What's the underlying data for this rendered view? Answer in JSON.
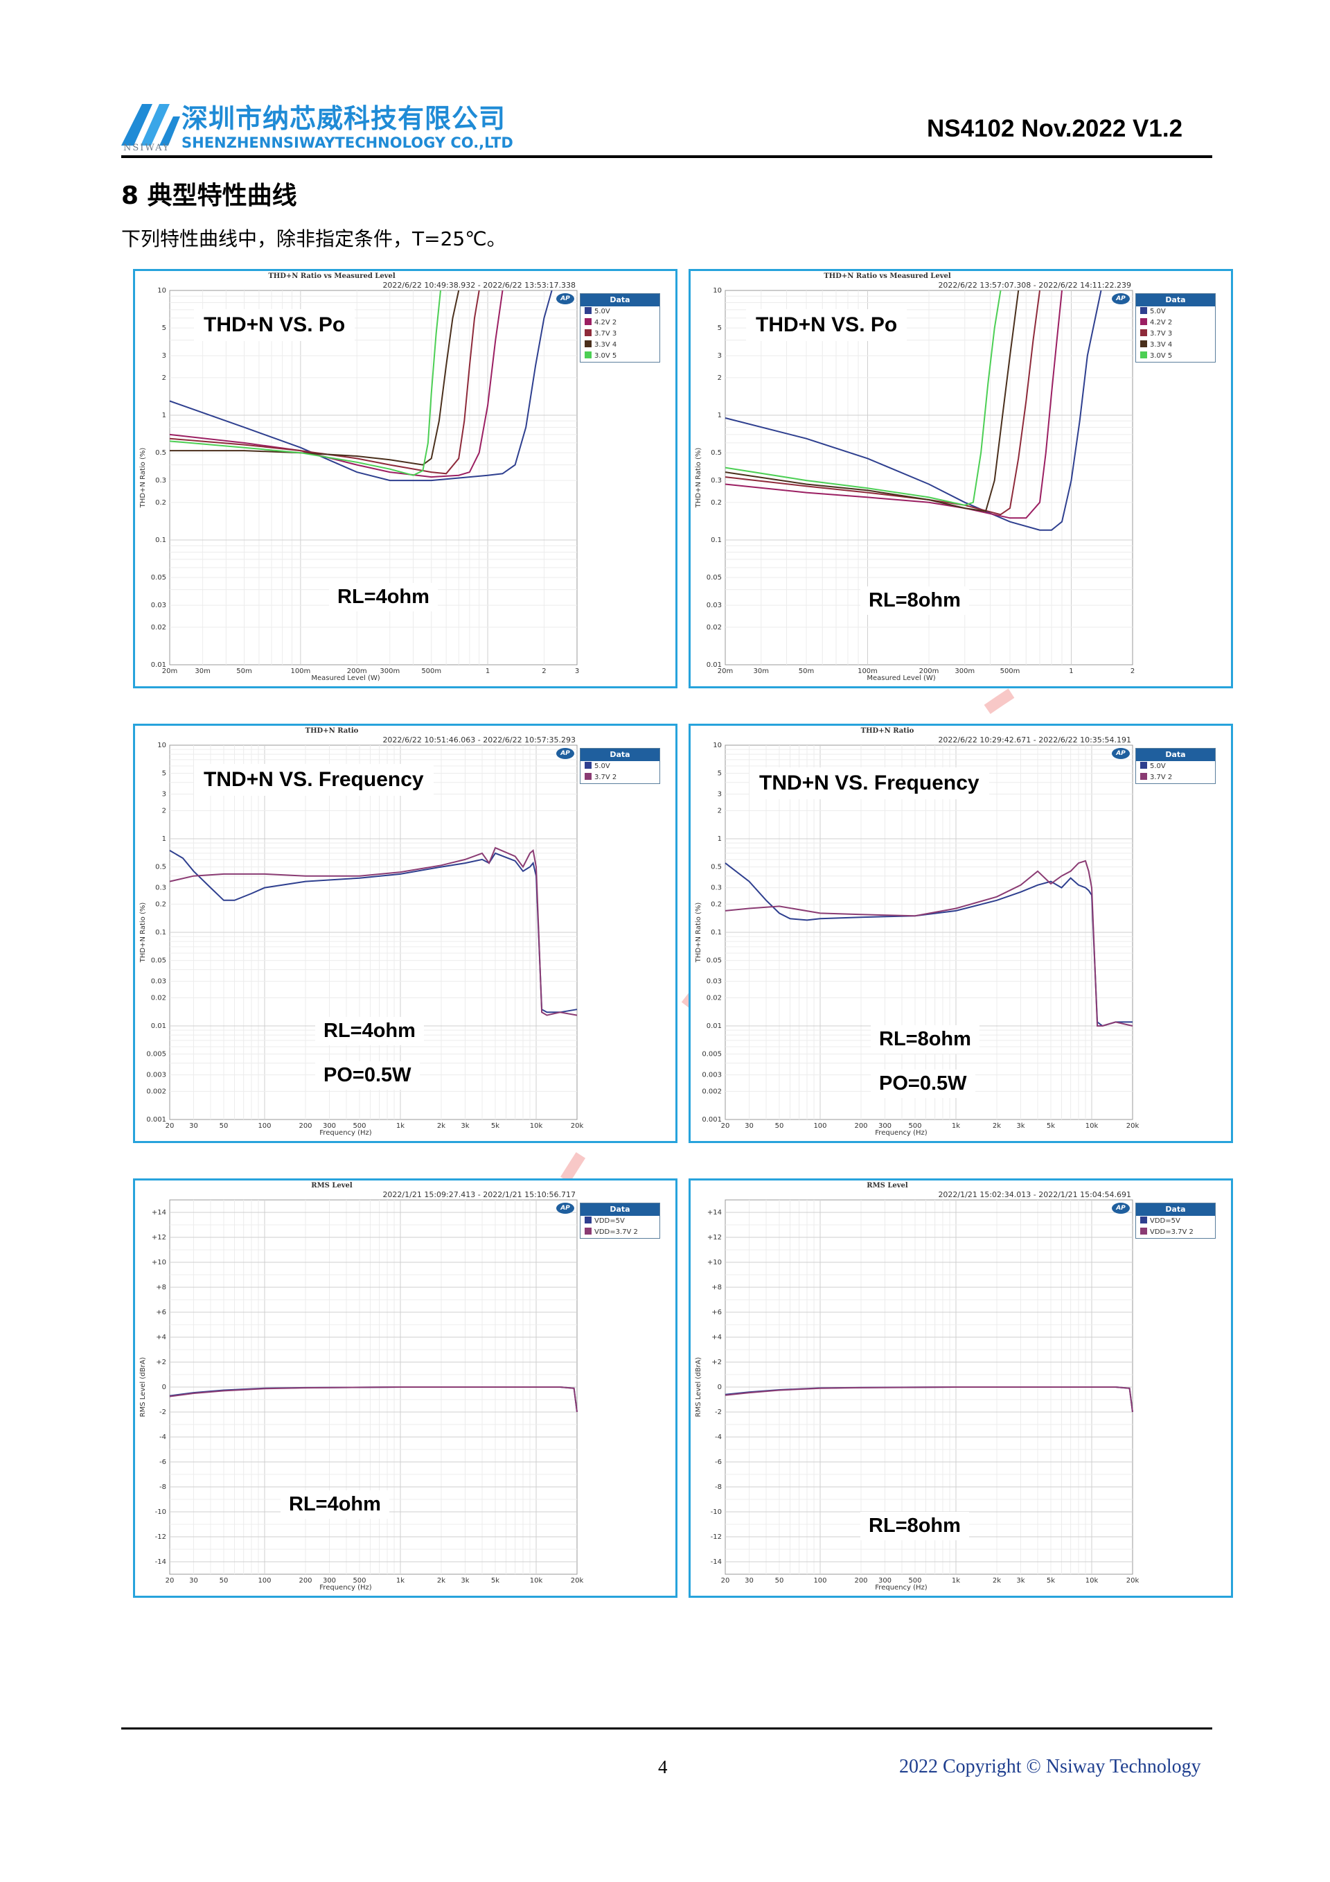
{
  "header": {
    "company_cn": "深圳市纳芯威科技有限公司",
    "company_en": "SHENZHENNSIWAYTECHNOLOGY CO.,LTD",
    "logo_text": "NSIWAY",
    "doc_id": "NS4102 Nov.2022 V1.2"
  },
  "section": {
    "title": "8 典型特性曲线",
    "intro": "下列特性曲线中，除非指定条件，T=25℃。"
  },
  "colors": {
    "panel_border": "#27a3dc",
    "company_blue": "#1f8bd6",
    "legend_header": "#1f5f9e",
    "series_5v": "#2e3f8f",
    "series_42v": "#9b1f62",
    "series_37v": "#8e2a3a",
    "series_33v": "#4a2f1c",
    "series_30v": "#4ccf54",
    "series_37v_pink": "#8a3b73",
    "watermark": "#e53935"
  },
  "charts": [
    {
      "id": "thd_po_4ohm",
      "title": "THD+N Ratio vs Measured Level",
      "timestamp": "2022/6/22 10:49:38.932 - 2022/6/22 13:53:17.338",
      "label": "THD+N VS. Po",
      "condition": "RL=4ohm",
      "condition2": "",
      "legend_title": "Data",
      "legend": [
        {
          "text": "5.0V",
          "color": "#2e3f8f"
        },
        {
          "text": "4.2V 2",
          "color": "#9b1f62"
        },
        {
          "text": "3.7V 3",
          "color": "#8e2a3a"
        },
        {
          "text": "3.3V 4",
          "color": "#4a2f1c"
        },
        {
          "text": "3.0V 5",
          "color": "#4ccf54"
        }
      ],
      "xlabel": "Measured Level (W)",
      "ylabel": "THD+N Ratio (%)",
      "xticks": [
        "20m",
        "30m",
        "50m",
        "100m",
        "200m",
        "300m",
        "500m",
        "1",
        "2",
        "3"
      ],
      "yticks": [
        "10",
        "5",
        "3",
        "2",
        "1",
        "0.5",
        "0.3",
        "0.2",
        "0.1",
        "0.05",
        "0.03",
        "0.02",
        "0.01"
      ]
    },
    {
      "id": "thd_po_8ohm",
      "title": "THD+N Ratio vs Measured Level",
      "timestamp": "2022/6/22 13:57:07.308 - 2022/6/22 14:11:22.239",
      "label": "THD+N VS. Po",
      "condition": "RL=8ohm",
      "condition2": "",
      "legend_title": "Data",
      "legend": [
        {
          "text": "5.0V",
          "color": "#2e3f8f"
        },
        {
          "text": "4.2V 2",
          "color": "#9b1f62"
        },
        {
          "text": "3.7V 3",
          "color": "#8e2a3a"
        },
        {
          "text": "3.3V 4",
          "color": "#4a2f1c"
        },
        {
          "text": "3.0V 5",
          "color": "#4ccf54"
        }
      ],
      "xlabel": "Measured Level (W)",
      "ylabel": "THD+N Ratio (%)",
      "xticks": [
        "20m",
        "30m",
        "50m",
        "100m",
        "200m",
        "300m",
        "500m",
        "1",
        "2"
      ],
      "yticks": [
        "10",
        "5",
        "3",
        "2",
        "1",
        "0.5",
        "0.3",
        "0.2",
        "0.1",
        "0.05",
        "0.03",
        "0.02",
        "0.01"
      ]
    },
    {
      "id": "thd_freq_4ohm",
      "title": "THD+N Ratio",
      "timestamp": "2022/6/22 10:51:46.063 - 2022/6/22 10:57:35.293",
      "label": "TND+N VS. Frequency",
      "condition": "RL=4ohm",
      "condition2": "PO=0.5W",
      "legend_title": "Data",
      "legend": [
        {
          "text": "5.0V",
          "color": "#2e3f8f"
        },
        {
          "text": "3.7V 2",
          "color": "#8a3b73"
        }
      ],
      "xlabel": "Frequency (Hz)",
      "ylabel": "THD+N Ratio (%)",
      "xticks": [
        "20",
        "30",
        "50",
        "100",
        "200",
        "300",
        "500",
        "1k",
        "2k",
        "3k",
        "5k",
        "10k",
        "20k"
      ],
      "yticks": [
        "10",
        "5",
        "3",
        "2",
        "1",
        "0.5",
        "0.3",
        "0.2",
        "0.1",
        "0.05",
        "0.03",
        "0.02",
        "0.01",
        "0.005",
        "0.003",
        "0.002",
        "0.001"
      ]
    },
    {
      "id": "thd_freq_8ohm",
      "title": "THD+N Ratio",
      "timestamp": "2022/6/22 10:29:42.671 - 2022/6/22 10:35:54.191",
      "label": "TND+N VS. Frequency",
      "condition": "RL=8ohm",
      "condition2": "PO=0.5W",
      "legend_title": "Data",
      "legend": [
        {
          "text": "5.0V",
          "color": "#2e3f8f"
        },
        {
          "text": "3.7V 2",
          "color": "#8a3b73"
        }
      ],
      "xlabel": "Frequency (Hz)",
      "ylabel": "THD+N Ratio (%)",
      "xticks": [
        "20",
        "30",
        "50",
        "100",
        "200",
        "300",
        "500",
        "1k",
        "2k",
        "3k",
        "5k",
        "10k",
        "20k"
      ],
      "yticks": [
        "10",
        "5",
        "3",
        "2",
        "1",
        "0.5",
        "0.3",
        "0.2",
        "0.1",
        "0.05",
        "0.03",
        "0.02",
        "0.01",
        "0.005",
        "0.003",
        "0.002",
        "0.001"
      ]
    },
    {
      "id": "rms_4ohm",
      "title": "RMS Level",
      "timestamp": "2022/1/21 15:09:27.413 - 2022/1/21 15:10:56.717",
      "label": "",
      "condition": "RL=4ohm",
      "condition2": "",
      "legend_title": "Data",
      "legend": [
        {
          "text": "VDD=5V",
          "color": "#2e3f8f"
        },
        {
          "text": "VDD=3.7V 2",
          "color": "#8a3b73"
        }
      ],
      "xlabel": "Frequency (Hz)",
      "ylabel": "RMS Level (dBrA)",
      "xticks": [
        "20",
        "30",
        "50",
        "100",
        "200",
        "300",
        "500",
        "1k",
        "2k",
        "3k",
        "5k",
        "10k",
        "20k"
      ],
      "yticks": [
        "+14",
        "+12",
        "+10",
        "+8",
        "+6",
        "+4",
        "+2",
        "0",
        "-2",
        "-4",
        "-6",
        "-8",
        "-10",
        "-12",
        "-14"
      ]
    },
    {
      "id": "rms_8ohm",
      "title": "RMS Level",
      "timestamp": "2022/1/21 15:02:34.013 - 2022/1/21 15:04:54.691",
      "label": "",
      "condition": "RL=8ohm",
      "condition2": "",
      "legend_title": "Data",
      "legend": [
        {
          "text": "VDD=5V",
          "color": "#2e3f8f"
        },
        {
          "text": "VDD=3.7V 2",
          "color": "#8a3b73"
        }
      ],
      "xlabel": "Frequency (Hz)",
      "ylabel": "RMS Level (dBrA)",
      "xticks": [
        "20",
        "30",
        "50",
        "100",
        "200",
        "300",
        "500",
        "1k",
        "2k",
        "3k",
        "5k",
        "10k",
        "20k"
      ],
      "yticks": [
        "+14",
        "+12",
        "+10",
        "+8",
        "+6",
        "+4",
        "+2",
        "0",
        "-2",
        "-4",
        "-6",
        "-8",
        "-10",
        "-12",
        "-14"
      ]
    }
  ],
  "chart_data": [
    {
      "type": "line",
      "title": "THD+N Ratio vs Measured Level",
      "xlabel": "Measured Level (W)",
      "ylabel": "THD+N Ratio (%)",
      "xscale": "log",
      "yscale": "log",
      "xlim": [
        0.02,
        3
      ],
      "ylim": [
        0.01,
        10
      ],
      "series": [
        {
          "name": "5.0V",
          "x": [
            0.02,
            0.05,
            0.1,
            0.2,
            0.3,
            0.5,
            0.8,
            1.0,
            1.2,
            1.4,
            1.6,
            1.8,
            2.0,
            2.2
          ],
          "y": [
            1.3,
            0.8,
            0.55,
            0.35,
            0.3,
            0.3,
            0.32,
            0.33,
            0.34,
            0.4,
            0.8,
            2.5,
            6,
            10
          ]
        },
        {
          "name": "4.2V 2",
          "x": [
            0.02,
            0.05,
            0.1,
            0.2,
            0.3,
            0.5,
            0.7,
            0.8,
            0.9,
            1.0,
            1.1,
            1.2
          ],
          "y": [
            0.7,
            0.6,
            0.52,
            0.4,
            0.35,
            0.32,
            0.33,
            0.35,
            0.5,
            1.2,
            4,
            10
          ]
        },
        {
          "name": "3.7V 3",
          "x": [
            0.02,
            0.05,
            0.1,
            0.2,
            0.3,
            0.5,
            0.6,
            0.7,
            0.75,
            0.8,
            0.85,
            0.9
          ],
          "y": [
            0.65,
            0.58,
            0.52,
            0.45,
            0.4,
            0.35,
            0.34,
            0.45,
            0.9,
            2.5,
            6,
            10
          ]
        },
        {
          "name": "3.3V 4",
          "x": [
            0.02,
            0.05,
            0.1,
            0.2,
            0.3,
            0.45,
            0.5,
            0.55,
            0.6,
            0.65,
            0.7
          ],
          "y": [
            0.52,
            0.52,
            0.5,
            0.47,
            0.44,
            0.4,
            0.45,
            0.9,
            2.5,
            6,
            10
          ]
        },
        {
          "name": "3.0V 5",
          "x": [
            0.02,
            0.05,
            0.1,
            0.2,
            0.3,
            0.4,
            0.45,
            0.48,
            0.5,
            0.53,
            0.56
          ],
          "y": [
            0.62,
            0.55,
            0.5,
            0.42,
            0.37,
            0.33,
            0.36,
            0.6,
            1.5,
            4.5,
            10
          ]
        }
      ]
    },
    {
      "type": "line",
      "title": "THD+N Ratio vs Measured Level",
      "xlabel": "Measured Level (W)",
      "ylabel": "THD+N Ratio (%)",
      "xscale": "log",
      "yscale": "log",
      "xlim": [
        0.02,
        2
      ],
      "ylim": [
        0.01,
        10
      ],
      "series": [
        {
          "name": "5.0V",
          "x": [
            0.02,
            0.05,
            0.1,
            0.2,
            0.3,
            0.5,
            0.7,
            0.8,
            0.9,
            1.0,
            1.1,
            1.2,
            1.4
          ],
          "y": [
            0.95,
            0.65,
            0.45,
            0.28,
            0.2,
            0.14,
            0.12,
            0.12,
            0.14,
            0.3,
            0.9,
            3,
            10
          ]
        },
        {
          "name": "4.2V 2",
          "x": [
            0.02,
            0.05,
            0.1,
            0.2,
            0.3,
            0.5,
            0.6,
            0.7,
            0.75,
            0.8,
            0.85,
            0.9
          ],
          "y": [
            0.28,
            0.24,
            0.22,
            0.2,
            0.18,
            0.15,
            0.15,
            0.2,
            0.5,
            1.5,
            4,
            10
          ]
        },
        {
          "name": "3.7V 3",
          "x": [
            0.02,
            0.05,
            0.1,
            0.2,
            0.3,
            0.45,
            0.5,
            0.55,
            0.6,
            0.65,
            0.7
          ],
          "y": [
            0.32,
            0.27,
            0.24,
            0.21,
            0.19,
            0.16,
            0.18,
            0.45,
            1.3,
            4,
            10
          ]
        },
        {
          "name": "3.3V 4",
          "x": [
            0.02,
            0.05,
            0.1,
            0.2,
            0.3,
            0.38,
            0.42,
            0.46,
            0.5,
            0.55
          ],
          "y": [
            0.35,
            0.28,
            0.25,
            0.21,
            0.18,
            0.17,
            0.3,
            1,
            3,
            10
          ]
        },
        {
          "name": "3.0V 5",
          "x": [
            0.02,
            0.05,
            0.1,
            0.2,
            0.3,
            0.33,
            0.36,
            0.39,
            0.42,
            0.45
          ],
          "y": [
            0.38,
            0.3,
            0.26,
            0.22,
            0.19,
            0.2,
            0.5,
            1.8,
            5,
            10
          ]
        }
      ]
    },
    {
      "type": "line",
      "title": "THD+N Ratio",
      "xlabel": "Frequency (Hz)",
      "ylabel": "THD+N Ratio (%)",
      "xscale": "log",
      "yscale": "log",
      "xlim": [
        20,
        20000
      ],
      "ylim": [
        0.001,
        10
      ],
      "series": [
        {
          "name": "5.0V",
          "x": [
            20,
            25,
            30,
            40,
            50,
            60,
            80,
            100,
            200,
            500,
            1000,
            2000,
            3000,
            4000,
            4500,
            5000,
            7000,
            8000,
            9000,
            9500,
            10000,
            11000,
            12000,
            15000,
            20000
          ],
          "y": [
            0.75,
            0.62,
            0.45,
            0.3,
            0.22,
            0.22,
            0.26,
            0.3,
            0.35,
            0.38,
            0.42,
            0.5,
            0.55,
            0.6,
            0.55,
            0.7,
            0.58,
            0.45,
            0.5,
            0.55,
            0.4,
            0.015,
            0.014,
            0.014,
            0.015
          ]
        },
        {
          "name": "3.7V 2",
          "x": [
            20,
            30,
            50,
            100,
            200,
            500,
            1000,
            2000,
            3000,
            4000,
            4500,
            5000,
            7000,
            8000,
            9000,
            9500,
            10000,
            11000,
            12000,
            15000,
            20000
          ],
          "y": [
            0.35,
            0.4,
            0.42,
            0.42,
            0.4,
            0.4,
            0.44,
            0.52,
            0.6,
            0.7,
            0.55,
            0.8,
            0.65,
            0.5,
            0.7,
            0.75,
            0.5,
            0.014,
            0.013,
            0.014,
            0.013
          ]
        }
      ]
    },
    {
      "type": "line",
      "title": "THD+N Ratio",
      "xlabel": "Frequency (Hz)",
      "ylabel": "THD+N Ratio (%)",
      "xscale": "log",
      "yscale": "log",
      "xlim": [
        20,
        20000
      ],
      "ylim": [
        0.001,
        10
      ],
      "series": [
        {
          "name": "5.0V",
          "x": [
            20,
            30,
            40,
            50,
            60,
            80,
            100,
            200,
            500,
            1000,
            2000,
            3000,
            4000,
            5000,
            6000,
            7000,
            8000,
            9000,
            9500,
            10000,
            11000,
            12000,
            15000,
            20000
          ],
          "y": [
            0.55,
            0.35,
            0.22,
            0.16,
            0.14,
            0.135,
            0.14,
            0.145,
            0.15,
            0.17,
            0.22,
            0.27,
            0.32,
            0.35,
            0.3,
            0.38,
            0.32,
            0.3,
            0.28,
            0.25,
            0.011,
            0.01,
            0.011,
            0.011
          ]
        },
        {
          "name": "3.7V 2",
          "x": [
            20,
            30,
            50,
            100,
            200,
            500,
            1000,
            2000,
            3000,
            4000,
            5000,
            6000,
            7000,
            8000,
            9000,
            9500,
            10000,
            11000,
            12000,
            15000,
            20000
          ],
          "y": [
            0.17,
            0.18,
            0.19,
            0.16,
            0.155,
            0.15,
            0.18,
            0.24,
            0.32,
            0.45,
            0.33,
            0.4,
            0.45,
            0.55,
            0.58,
            0.45,
            0.3,
            0.01,
            0.01,
            0.011,
            0.01
          ]
        }
      ]
    },
    {
      "type": "line",
      "title": "RMS Level",
      "xlabel": "Frequency (Hz)",
      "ylabel": "RMS Level (dBrA)",
      "xscale": "log",
      "xlim": [
        20,
        20000
      ],
      "ylim": [
        -15,
        15
      ],
      "series": [
        {
          "name": "VDD=5V",
          "x": [
            20,
            30,
            50,
            100,
            200,
            1000,
            5000,
            10000,
            15000,
            19000,
            20000
          ],
          "y": [
            -0.7,
            -0.45,
            -0.25,
            -0.1,
            -0.05,
            0,
            0,
            0,
            0,
            -0.1,
            -2
          ]
        },
        {
          "name": "VDD=3.7V 2",
          "x": [
            20,
            30,
            50,
            100,
            200,
            1000,
            5000,
            10000,
            15000,
            19000,
            20000
          ],
          "y": [
            -0.75,
            -0.5,
            -0.3,
            -0.12,
            -0.06,
            0,
            0,
            0,
            0,
            -0.1,
            -2
          ]
        }
      ]
    },
    {
      "type": "line",
      "title": "RMS Level",
      "xlabel": "Frequency (Hz)",
      "ylabel": "RMS Level (dBrA)",
      "xscale": "log",
      "xlim": [
        20,
        20000
      ],
      "ylim": [
        -15,
        15
      ],
      "series": [
        {
          "name": "VDD=5V",
          "x": [
            20,
            30,
            50,
            100,
            200,
            1000,
            5000,
            10000,
            15000,
            19000,
            20000
          ],
          "y": [
            -0.6,
            -0.4,
            -0.22,
            -0.08,
            -0.04,
            0,
            0,
            0,
            0,
            -0.1,
            -2
          ]
        },
        {
          "name": "VDD=3.7V 2",
          "x": [
            20,
            30,
            50,
            100,
            200,
            1000,
            5000,
            10000,
            15000,
            19000,
            20000
          ],
          "y": [
            -0.65,
            -0.45,
            -0.25,
            -0.1,
            -0.05,
            0,
            0,
            0,
            0,
            -0.1,
            -2
          ]
        }
      ]
    }
  ],
  "footer": {
    "page_number": "4",
    "copyright": "2022 Copyright © Nsiway Technology"
  }
}
